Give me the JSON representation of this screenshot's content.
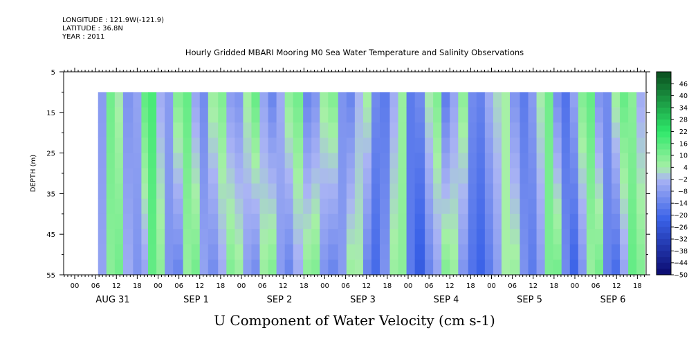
{
  "header": {
    "longitude": "LONGITUDE : 121.9W(-121.9)",
    "latitude": "LATITUDE : 36.8N",
    "year": "YEAR : 2011"
  },
  "title": "Hourly Gridded MBARI Mooring M0 Sea Water Temperature and Salinity Observations",
  "caption": "U Component of Water Velocity (cm s-1)",
  "colors": {
    "strong_negative": "#0a0a6e",
    "negative": "#3a62e8",
    "weak_negative": "#aab4f4",
    "weak_positive": "#a6f0a6",
    "positive": "#2ee86a",
    "strong_positive": "#0a4d1e"
  },
  "chart_data": {
    "type": "heatmap",
    "title": "Hourly Gridded MBARI Mooring M0 Sea Water Temperature and Salinity Observations",
    "xlabel": "",
    "ylabel": "DEPTH (m)",
    "y_ticks": [
      5,
      15,
      25,
      35,
      45,
      55
    ],
    "ylim": [
      55,
      5
    ],
    "data_depth_range": [
      10,
      55
    ],
    "x_hour_ticks": [
      "00",
      "06",
      "12",
      "18",
      "00",
      "06",
      "12",
      "18",
      "00",
      "06",
      "12",
      "18",
      "00",
      "06",
      "12",
      "18",
      "00",
      "06",
      "12",
      "18",
      "00",
      "06",
      "12",
      "18",
      "00",
      "06",
      "12",
      "18"
    ],
    "x_date_labels": [
      "AUG 31",
      "SEP  1",
      "SEP  2",
      "SEP  3",
      "SEP  4",
      "SEP  5",
      "SEP  6"
    ],
    "colorbar": {
      "levels": [
        46,
        40,
        34,
        28,
        22,
        16,
        10,
        4,
        -2,
        -8,
        -14,
        -20,
        -26,
        -32,
        -38,
        -44,
        -50
      ],
      "range": [
        -50,
        52
      ]
    },
    "series": [
      {
        "day_offset": [
          0.28,
          0.38,
          0.48,
          0.58,
          0.7,
          0.8,
          0.88,
          0.98,
          1.08,
          1.18,
          1.3,
          1.4,
          1.5,
          1.6,
          1.72,
          1.82,
          1.92,
          2.02,
          2.12,
          2.22,
          2.32,
          2.42,
          2.52,
          2.62,
          2.74,
          2.84,
          2.94,
          3.04,
          3.16,
          3.26,
          3.36,
          3.46,
          3.56,
          3.66,
          3.78,
          3.88,
          3.98,
          4.08,
          4.2,
          4.3,
          4.4,
          4.5,
          4.6,
          4.72,
          4.82,
          4.92,
          5.02,
          5.12,
          5.22,
          5.34,
          5.44,
          5.54,
          5.64,
          5.74,
          5.84,
          5.94,
          6.04,
          6.14,
          6.24,
          6.34,
          6.44,
          6.54,
          6.64,
          6.74
        ],
        "u_surface": [
          -8,
          12,
          3,
          -10,
          -6,
          15,
          18,
          -4,
          -8,
          10,
          14,
          -6,
          -12,
          6,
          10,
          -8,
          -10,
          5,
          14,
          -6,
          -14,
          -4,
          8,
          12,
          -14,
          -10,
          6,
          10,
          -10,
          -14,
          -2,
          5,
          -12,
          -16,
          -4,
          6,
          -16,
          -12,
          4,
          10,
          -16,
          -6,
          8,
          -12,
          -14,
          -4,
          2,
          4,
          -10,
          -16,
          -8,
          4,
          12,
          -12,
          -18,
          -6,
          10,
          14,
          -10,
          -12,
          6,
          14,
          8,
          -4
        ],
        "u_bottom": [
          -6,
          8,
          12,
          -4,
          -10,
          -6,
          14,
          8,
          -10,
          -14,
          6,
          12,
          -6,
          -12,
          -4,
          10,
          6,
          -8,
          -12,
          6,
          10,
          -8,
          -14,
          -4,
          8,
          10,
          -10,
          -14,
          -8,
          6,
          4,
          -14,
          -20,
          -10,
          6,
          8,
          -16,
          -24,
          -14,
          -6,
          10,
          6,
          -10,
          -18,
          -22,
          -16,
          -8,
          4,
          6,
          -10,
          -16,
          -8,
          10,
          12,
          -12,
          -22,
          -10,
          6,
          12,
          -14,
          -20,
          -6,
          14,
          10
        ]
      }
    ]
  }
}
